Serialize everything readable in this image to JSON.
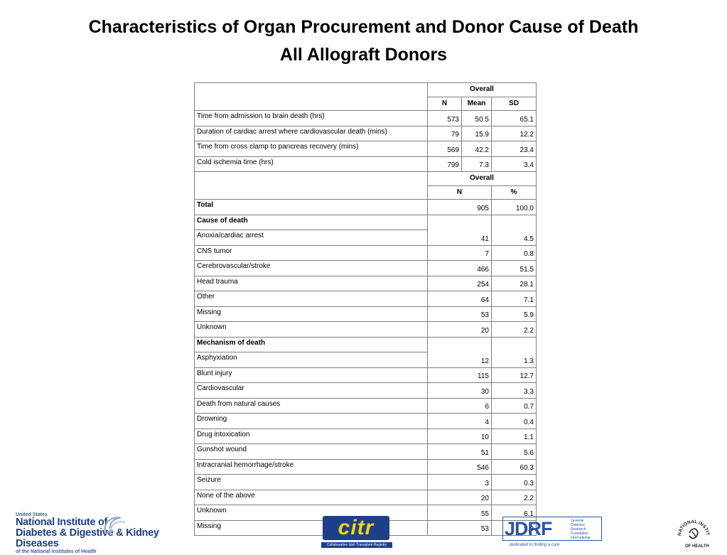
{
  "title_line1": "Characteristics of Organ Procurement and Donor Cause of Death",
  "title_line2": "All Allograft Donors",
  "table1": {
    "group_header": "Overall",
    "columns": [
      "N",
      "Mean",
      "SD"
    ],
    "rows": [
      {
        "label": "Time from admission to brain death (hrs)",
        "n": "573",
        "mean": "50.5",
        "sd": "65.1"
      },
      {
        "label": "Duration of cardiac arrest where cardiovascular death (mins)",
        "n": "79",
        "mean": "15.9",
        "sd": "12.2"
      },
      {
        "label": "Time from cross clamp to pancreas recovery (mins)",
        "n": "569",
        "mean": "42.2",
        "sd": "23.4"
      },
      {
        "label": "Cold ischemia time (hrs)",
        "n": "799",
        "mean": "7.3",
        "sd": "3.4"
      }
    ]
  },
  "table2": {
    "group_header": "Overall",
    "columns": [
      "N",
      "%"
    ],
    "total": {
      "label": "Total",
      "n": "905",
      "pct": "100.0"
    },
    "cause_header": "Cause of death",
    "cause_rows": [
      {
        "label": "Anoxia/cardiac arrest",
        "n": "41",
        "pct": "4.5"
      },
      {
        "label": "CNS tumor",
        "n": "7",
        "pct": "0.8"
      },
      {
        "label": "Cerebrovascular/stroke",
        "n": "466",
        "pct": "51.5"
      },
      {
        "label": "Head trauma",
        "n": "254",
        "pct": "28.1"
      },
      {
        "label": "Other",
        "n": "64",
        "pct": "7.1"
      },
      {
        "label": "Missing",
        "n": "53",
        "pct": "5.9"
      },
      {
        "label": "Unknown",
        "n": "20",
        "pct": "2.2"
      }
    ],
    "mechanism_header": "Mechanism of death",
    "mechanism_rows": [
      {
        "label": "Asphyxiation",
        "n": "12",
        "pct": "1.3"
      },
      {
        "label": "Blunt injury",
        "n": "115",
        "pct": "12.7"
      },
      {
        "label": "Cardiovascular",
        "n": "30",
        "pct": "3.3"
      },
      {
        "label": "Death from natural causes",
        "n": "6",
        "pct": "0.7"
      },
      {
        "label": "Drowning",
        "n": "4",
        "pct": "0.4"
      },
      {
        "label": "Drug intoxication",
        "n": "10",
        "pct": "1.1"
      },
      {
        "label": "Gunshot wound",
        "n": "51",
        "pct": "5.6"
      },
      {
        "label": "Intracranial hemorrhage/stroke",
        "n": "546",
        "pct": "60.3"
      },
      {
        "label": "Seizure",
        "n": "3",
        "pct": "0.3"
      },
      {
        "label": "None of the above",
        "n": "20",
        "pct": "2.2"
      },
      {
        "label": "Unknown",
        "n": "55",
        "pct": "6.1"
      },
      {
        "label": "Missing",
        "n": "53",
        "pct": "5.9"
      }
    ]
  },
  "logos": {
    "niddk": {
      "line1": "United States",
      "line2": "National Institute of",
      "line3": "Diabetes & Digestive & Kidney Diseases",
      "line4": "of the National Institutes of Health"
    },
    "citr": {
      "word": "citr",
      "tagline": "Collaborative Islet Transplant Registry"
    },
    "jdrf": {
      "word": "JDRF",
      "fine_print": [
        "Juvenile",
        "Diabetes",
        "Research",
        "Foundation",
        "International"
      ],
      "tagline": "dedicated to finding a cure"
    },
    "nih": {
      "text": "NATIONAL INSTITUTES OF HEALTH"
    }
  },
  "colors": {
    "niddk_blue": "#1f3f86",
    "citr_navy": "#1d3f8a",
    "citr_gold": "#f2d417",
    "jdrf_blue": "#2b56a6",
    "border_gray": "#7f7f7f"
  }
}
